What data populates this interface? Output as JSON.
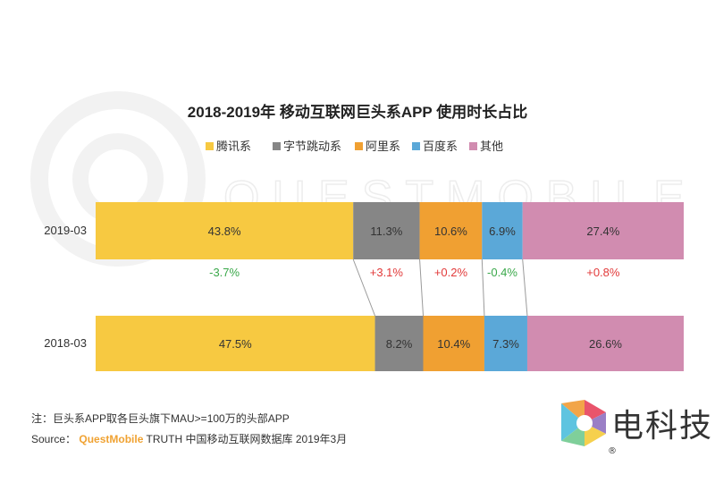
{
  "chart_data": {
    "type": "bar",
    "orientation": "horizontal-stacked-100",
    "title": "2018-2019年 移动互联网巨头系APP 使用时长占比",
    "categories": [
      "2019-03",
      "2018-03"
    ],
    "series": [
      {
        "name": "腾讯系",
        "color": "#f7c941",
        "values": [
          43.8,
          47.5
        ],
        "labels": [
          "43.8%",
          "47.5%"
        ]
      },
      {
        "name": "字节跳动系",
        "color": "#868686",
        "values": [
          11.3,
          8.2
        ],
        "labels": [
          "11.3%",
          "8.2%"
        ]
      },
      {
        "name": "阿里系",
        "color": "#f0a032",
        "values": [
          10.6,
          10.4
        ],
        "labels": [
          "10.6%",
          "10.4%"
        ]
      },
      {
        "name": "百度系",
        "color": "#5ba8d8",
        "values": [
          6.9,
          7.3
        ],
        "labels": [
          "6.9%",
          "7.3%"
        ]
      },
      {
        "name": "其他",
        "color": "#d18cb0",
        "values": [
          27.4,
          26.6
        ],
        "labels": [
          "27.4%",
          "26.6%"
        ]
      }
    ],
    "changes": [
      {
        "label": "-3.7%",
        "color": "#3aa84a"
      },
      {
        "label": "+3.1%",
        "color": "#e23a3a"
      },
      {
        "label": "+0.2%",
        "color": "#e23a3a"
      },
      {
        "label": "-0.4%",
        "color": "#3aa84a"
      },
      {
        "label": "+0.8%",
        "color": "#e23a3a"
      }
    ],
    "watermark": "QUESTMOBILE",
    "legend_position": "top"
  },
  "footnote": {
    "note": "注：巨头系APP取各巨头旗下MAU>=100万的头部APP",
    "source_label": "Source：",
    "source_brand": "QuestMobile",
    "source_rest": " TRUTH 中国移动互联网数据库 2019年3月"
  },
  "logo": {
    "text": "电科技",
    "mark": "®"
  }
}
